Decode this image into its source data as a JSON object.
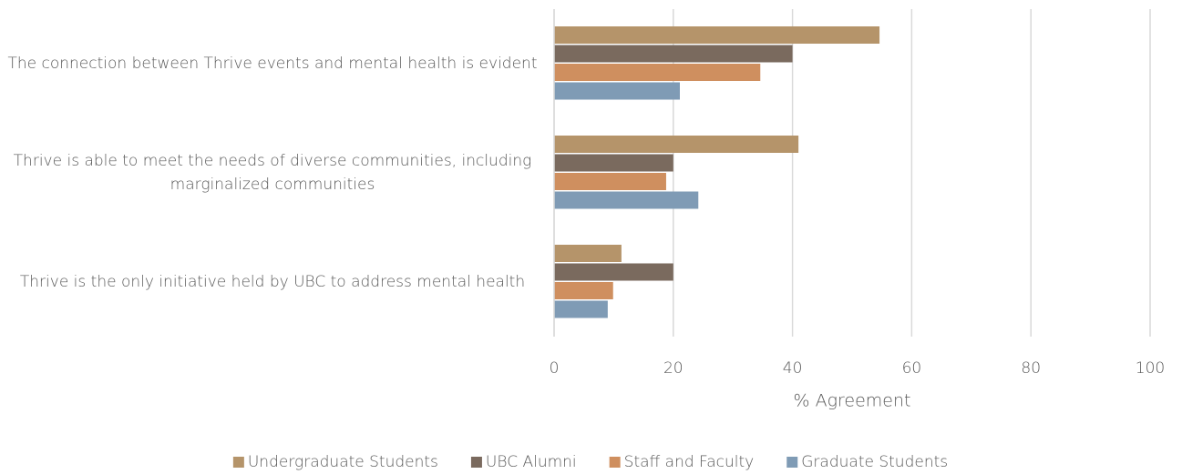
{
  "chart_data": {
    "type": "barh",
    "categories": [
      "The connection between Thrive events and mental health is evident",
      "Thrive is able to meet the needs of diverse communities, including marginalized communities",
      "Thrive is the only initiative held by UBC to address mental health"
    ],
    "series": [
      {
        "name": "Undergraduate Students",
        "color": "#b5946a",
        "values": [
          54.6,
          41,
          11.3
        ]
      },
      {
        "name": "UBC Alumni",
        "color": "#7a6a5e",
        "values": [
          40,
          20,
          20
        ]
      },
      {
        "name": "Staff and Faculty",
        "color": "#cf8f5f",
        "values": [
          34.6,
          18.8,
          9.9
        ]
      },
      {
        "name": "Graduate Students",
        "color": "#7f9bb5",
        "values": [
          21.1,
          24.2,
          9
        ]
      }
    ],
    "xlabel": "% Agreement",
    "xlim": [
      0,
      100
    ],
    "xticks": [
      0,
      20,
      40,
      60,
      80,
      100
    ],
    "grid": true,
    "legend": "bottom"
  }
}
